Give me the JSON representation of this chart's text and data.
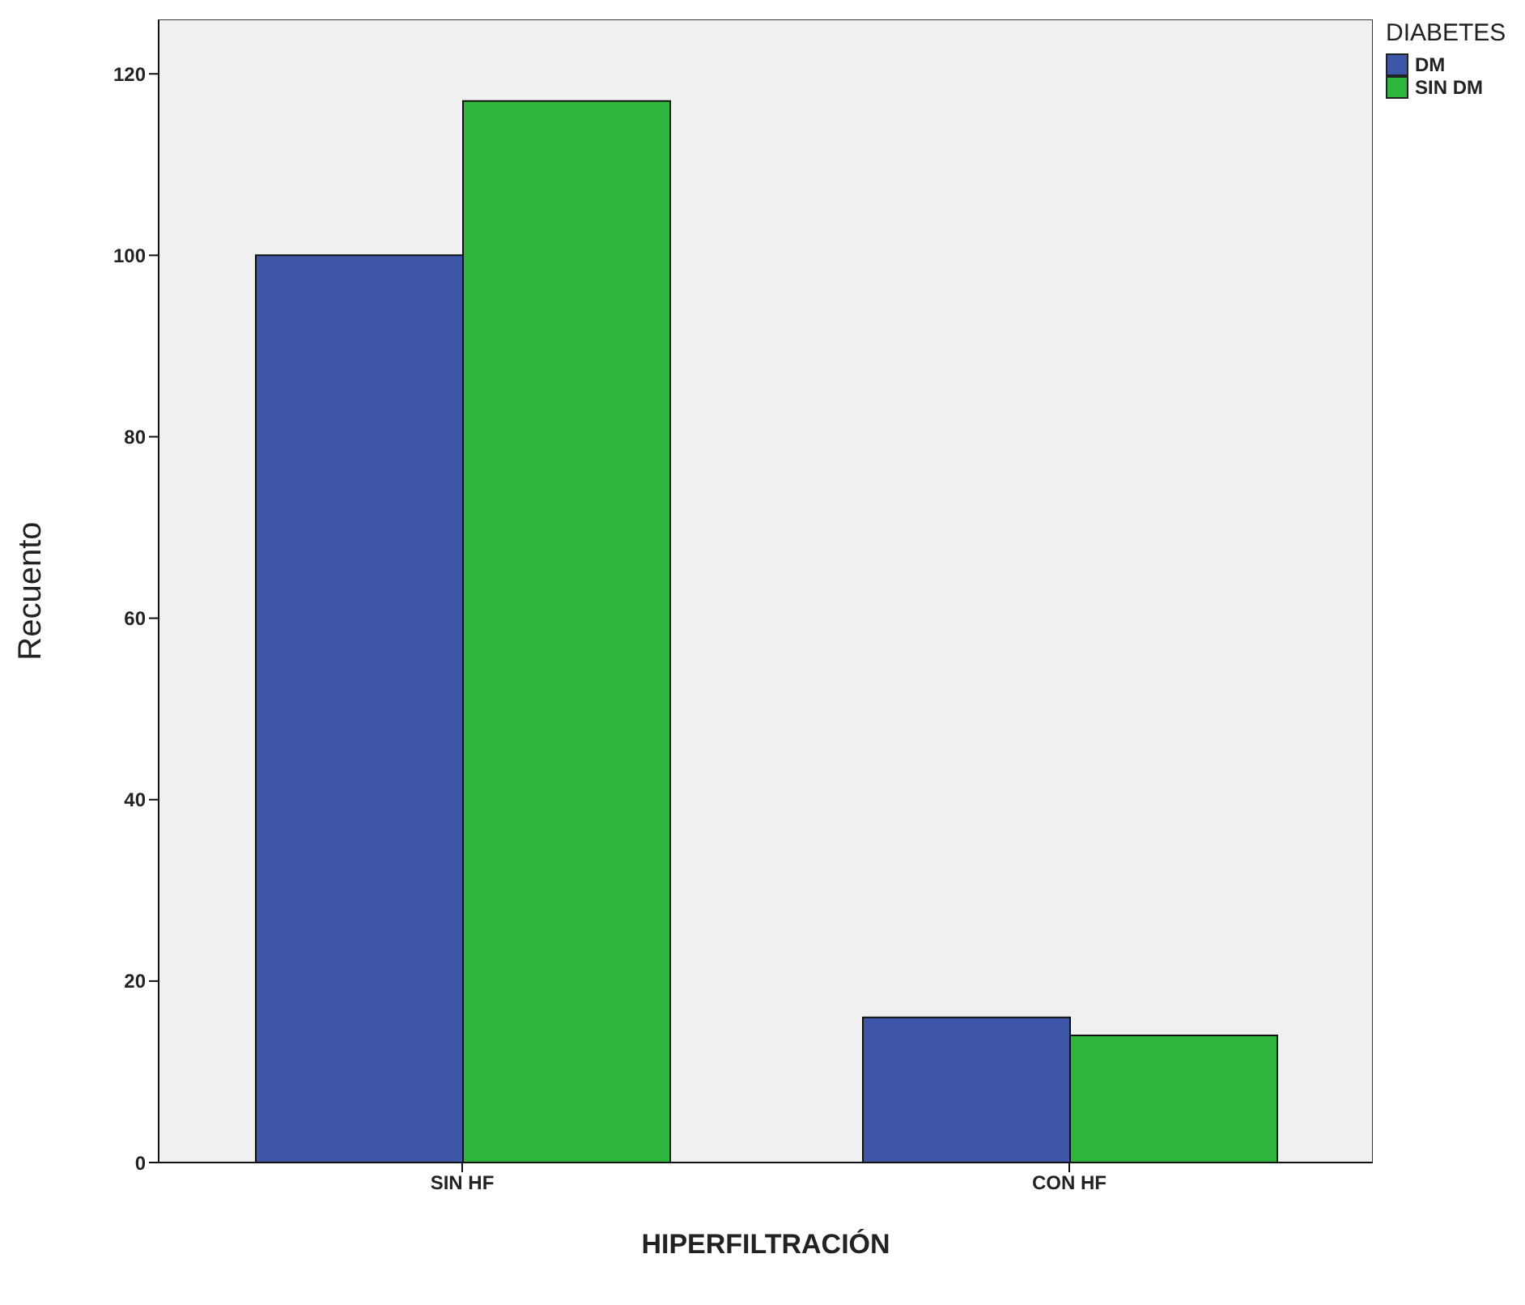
{
  "chart_data": {
    "type": "bar",
    "xlabel": "HIPERFILTRACIÓN",
    "ylabel": "Recuento",
    "legend_title": "DIABETES",
    "categories": [
      "SIN HF",
      "CON HF"
    ],
    "series": [
      {
        "name": "DM",
        "color": "#3d56a8",
        "values": [
          100,
          16
        ]
      },
      {
        "name": "SIN DM",
        "color": "#2db53c",
        "values": [
          117,
          14
        ]
      }
    ],
    "ylim": [
      0,
      126
    ],
    "yticks": [
      0,
      20,
      40,
      60,
      80,
      100,
      120
    ],
    "grid": false,
    "legend": "top right"
  }
}
